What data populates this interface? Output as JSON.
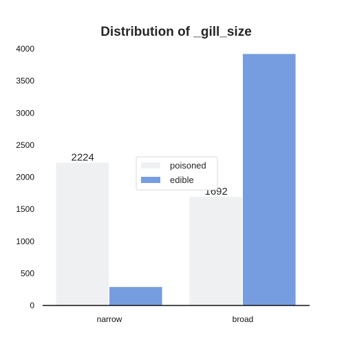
{
  "chart_data": {
    "type": "bar",
    "title": "Distribution of _gill_size",
    "xlabel": "",
    "ylabel": "",
    "categories": [
      "narrow",
      "broad"
    ],
    "series": [
      {
        "name": "poisoned",
        "values": [
          2224,
          1692
        ],
        "color": "#eff0f2"
      },
      {
        "name": "edible",
        "values": [
          288,
          3920
        ],
        "color": "#769ddf"
      }
    ],
    "data_labels": [
      "2224",
      "1692"
    ],
    "yticks": [
      0,
      500,
      1000,
      1500,
      2000,
      2500,
      3000,
      3500,
      4000
    ],
    "ylim": [
      0,
      4000
    ],
    "grid": false,
    "legend_position": "center"
  }
}
